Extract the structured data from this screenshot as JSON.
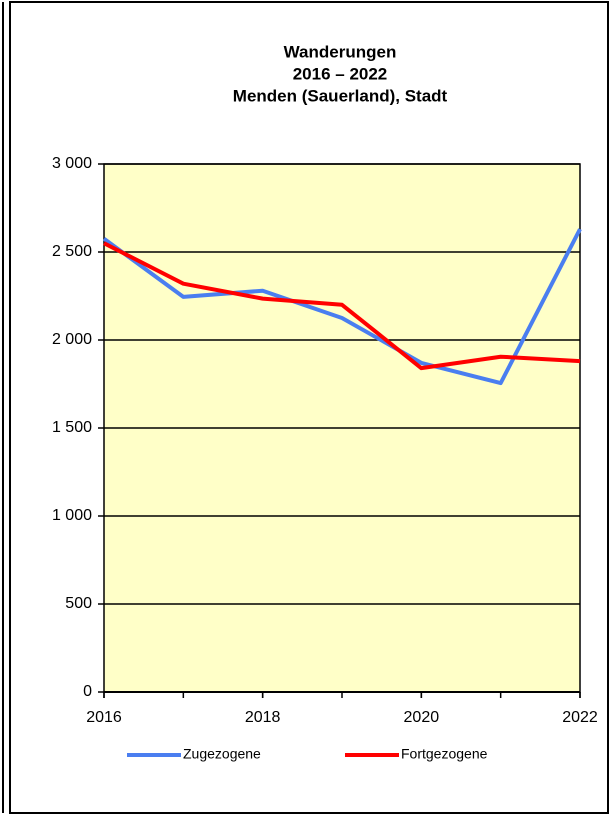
{
  "chart_data": {
    "type": "line",
    "title": [
      "Wanderungen",
      "2016 – 2022",
      "Menden (Sauerland), Stadt"
    ],
    "x": [
      2016,
      2017,
      2018,
      2019,
      2020,
      2021,
      2022
    ],
    "series": [
      {
        "name": "Zugezogene",
        "color": "#4a7ef0",
        "values": [
          2575,
          2245,
          2280,
          2125,
          1870,
          1755,
          2630
        ]
      },
      {
        "name": "Fortgezogene",
        "color": "#ff0000",
        "values": [
          2550,
          2320,
          2235,
          2200,
          1840,
          1905,
          1880
        ]
      }
    ],
    "xlim": [
      2016,
      2022
    ],
    "xticks": [
      2016,
      2018,
      2020,
      2022
    ],
    "ylim": [
      0,
      3000
    ],
    "yticks": [
      0,
      500,
      {
        "value": 1000,
        "label": "1 000"
      },
      {
        "value": 1500,
        "label": "1 500"
      },
      {
        "value": 2000,
        "label": "2 000"
      },
      {
        "value": 2500,
        "label": "2 500"
      },
      {
        "value": 3000,
        "label": "3 000"
      }
    ],
    "grid": true,
    "background": "#ffffc8"
  }
}
